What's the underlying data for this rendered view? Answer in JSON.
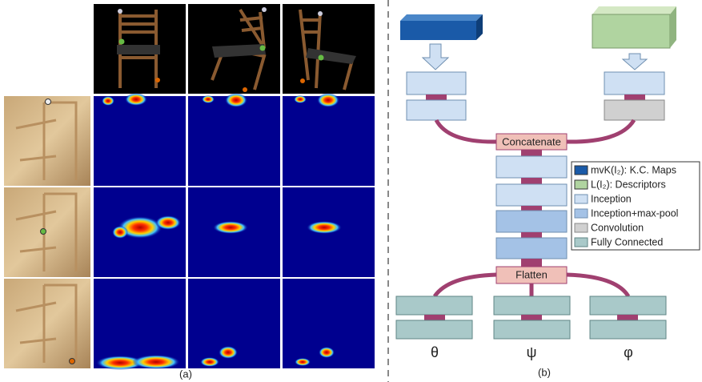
{
  "figure": {
    "panel_a": {
      "caption": "(a)"
    },
    "panel_b": {
      "caption": "(b)",
      "concatenate": "Concatenate",
      "flatten": "Flatten",
      "outputs": [
        "θ",
        "ψ",
        "φ"
      ],
      "legend": [
        "mvK(I₂): K.C. Maps",
        "L(I₂): Descriptors",
        "Inception",
        "Inception+max-pool",
        "Convolution",
        "Fully Connected"
      ]
    }
  }
}
